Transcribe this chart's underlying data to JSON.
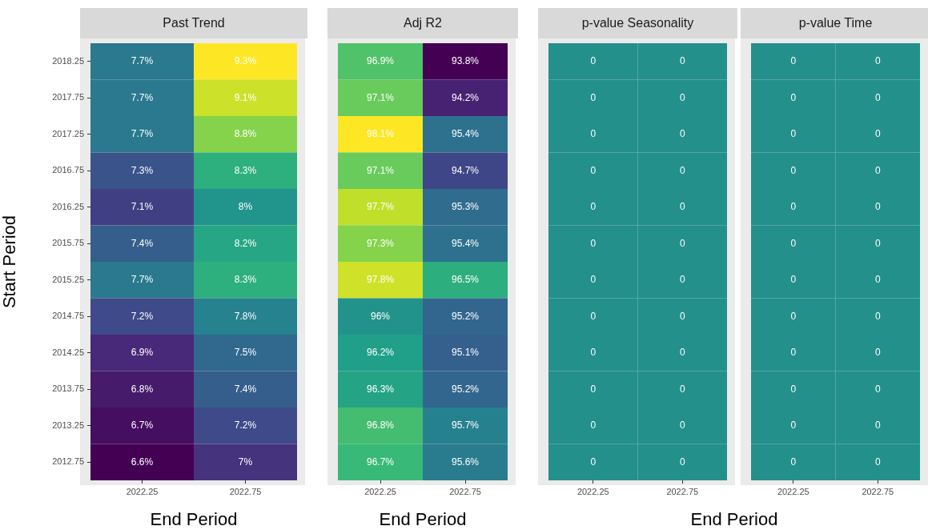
{
  "chart_data": [
    {
      "type": "heatmap",
      "title": "Past Trend",
      "xlabel": "End Period",
      "ylabel": "Start Period",
      "categories": [
        "2022.25",
        "2022.75"
      ],
      "y_categories": [
        "2018.25",
        "2017.75",
        "2017.25",
        "2016.75",
        "2016.25",
        "2015.75",
        "2015.25",
        "2014.75",
        "2014.25",
        "2013.75",
        "2013.25",
        "2012.75"
      ],
      "cells": [
        [
          7.7,
          9.3
        ],
        [
          7.7,
          9.1
        ],
        [
          7.7,
          8.8
        ],
        [
          7.3,
          8.3
        ],
        [
          7.1,
          8
        ],
        [
          7.4,
          8.2
        ],
        [
          7.7,
          8.3
        ],
        [
          7.2,
          7.8
        ],
        [
          6.9,
          7.5
        ],
        [
          6.8,
          7.4
        ],
        [
          6.7,
          7.2
        ],
        [
          6.6,
          7
        ]
      ],
      "cell_labels": [
        [
          "7.7%",
          "9.3%"
        ],
        [
          "7.7%",
          "9.1%"
        ],
        [
          "7.7%",
          "8.8%"
        ],
        [
          "7.3%",
          "8.3%"
        ],
        [
          "7.1%",
          "8%"
        ],
        [
          "7.4%",
          "8.2%"
        ],
        [
          "7.7%",
          "8.3%"
        ],
        [
          "7.2%",
          "7.8%"
        ],
        [
          "6.9%",
          "7.5%"
        ],
        [
          "6.8%",
          "7.4%"
        ],
        [
          "6.7%",
          "7.2%"
        ],
        [
          "6.6%",
          "7%"
        ]
      ]
    },
    {
      "type": "heatmap",
      "title": "Adj R2",
      "xlabel": "End Period",
      "tick_labels": "x",
      "categories": [
        "2022.25",
        "2022.75"
      ],
      "y_categories": [
        "2018.25",
        "2017.75",
        "2017.25",
        "2016.75",
        "2016.25",
        "2015.75",
        "2015.25",
        "2014.75",
        "2014.25",
        "2013.75",
        "2013.25",
        "2012.75"
      ],
      "cells": [
        [
          96.9,
          93.8
        ],
        [
          97.1,
          94.2
        ],
        [
          98.1,
          95.4
        ],
        [
          97.1,
          94.7
        ],
        [
          97.7,
          95.3
        ],
        [
          97.3,
          95.4
        ],
        [
          97.8,
          96.5
        ],
        [
          96,
          95.2
        ],
        [
          96.2,
          95.1
        ],
        [
          96.3,
          95.2
        ],
        [
          96.8,
          95.7
        ],
        [
          96.7,
          95.6
        ]
      ],
      "cell_labels": [
        [
          "96.9%",
          "93.8%"
        ],
        [
          "97.1%",
          "94.2%"
        ],
        [
          "98.1%",
          "95.4%"
        ],
        [
          "97.1%",
          "94.7%"
        ],
        [
          "97.7%",
          "95.3%"
        ],
        [
          "97.3%",
          "95.4%"
        ],
        [
          "97.8%",
          "96.5%"
        ],
        [
          "96%",
          "95.2%"
        ],
        [
          "96.2%",
          "95.1%"
        ],
        [
          "96.3%",
          "95.2%"
        ],
        [
          "96.8%",
          "95.7%"
        ],
        [
          "96.7%",
          "95.6%"
        ]
      ]
    },
    {
      "type": "heatmap",
      "title": "p-value Seasonality",
      "xlabel": "End Period",
      "tick_labels": "x",
      "data_labels": true,
      "categories": [
        "2022.25",
        "2022.75"
      ],
      "y_categories": [
        "2018.25",
        "2017.75",
        "2017.25",
        "2016.75",
        "2016.25",
        "2015.75",
        "2015.25",
        "2014.75",
        "2014.25",
        "2013.75",
        "2013.25",
        "2012.75"
      ],
      "cells": [
        [
          0,
          0
        ],
        [
          0,
          0
        ],
        [
          0,
          0
        ],
        [
          0,
          0
        ],
        [
          0,
          0
        ],
        [
          0,
          0
        ],
        [
          0,
          0
        ],
        [
          0,
          0
        ],
        [
          0,
          0
        ],
        [
          0,
          0
        ],
        [
          0,
          0
        ],
        [
          0,
          0
        ]
      ]
    },
    {
      "type": "heatmap",
      "title": "p-value Time",
      "tick_labels": "x",
      "data_labels": true,
      "categories": [
        "2022.25",
        "2022.75"
      ],
      "y_categories": [
        "2018.25",
        "2017.75",
        "2017.25",
        "2016.75",
        "2016.25",
        "2015.75",
        "2015.25",
        "2014.75",
        "2014.25",
        "2013.75",
        "2013.25",
        "2012.75"
      ],
      "cells": [
        [
          0,
          0
        ],
        [
          0,
          0
        ],
        [
          0,
          0
        ],
        [
          0,
          0
        ],
        [
          0,
          0
        ],
        [
          0,
          0
        ],
        [
          0,
          0
        ],
        [
          0,
          0
        ],
        [
          0,
          0
        ],
        [
          0,
          0
        ],
        [
          0,
          0
        ],
        [
          0,
          0
        ]
      ]
    }
  ]
}
